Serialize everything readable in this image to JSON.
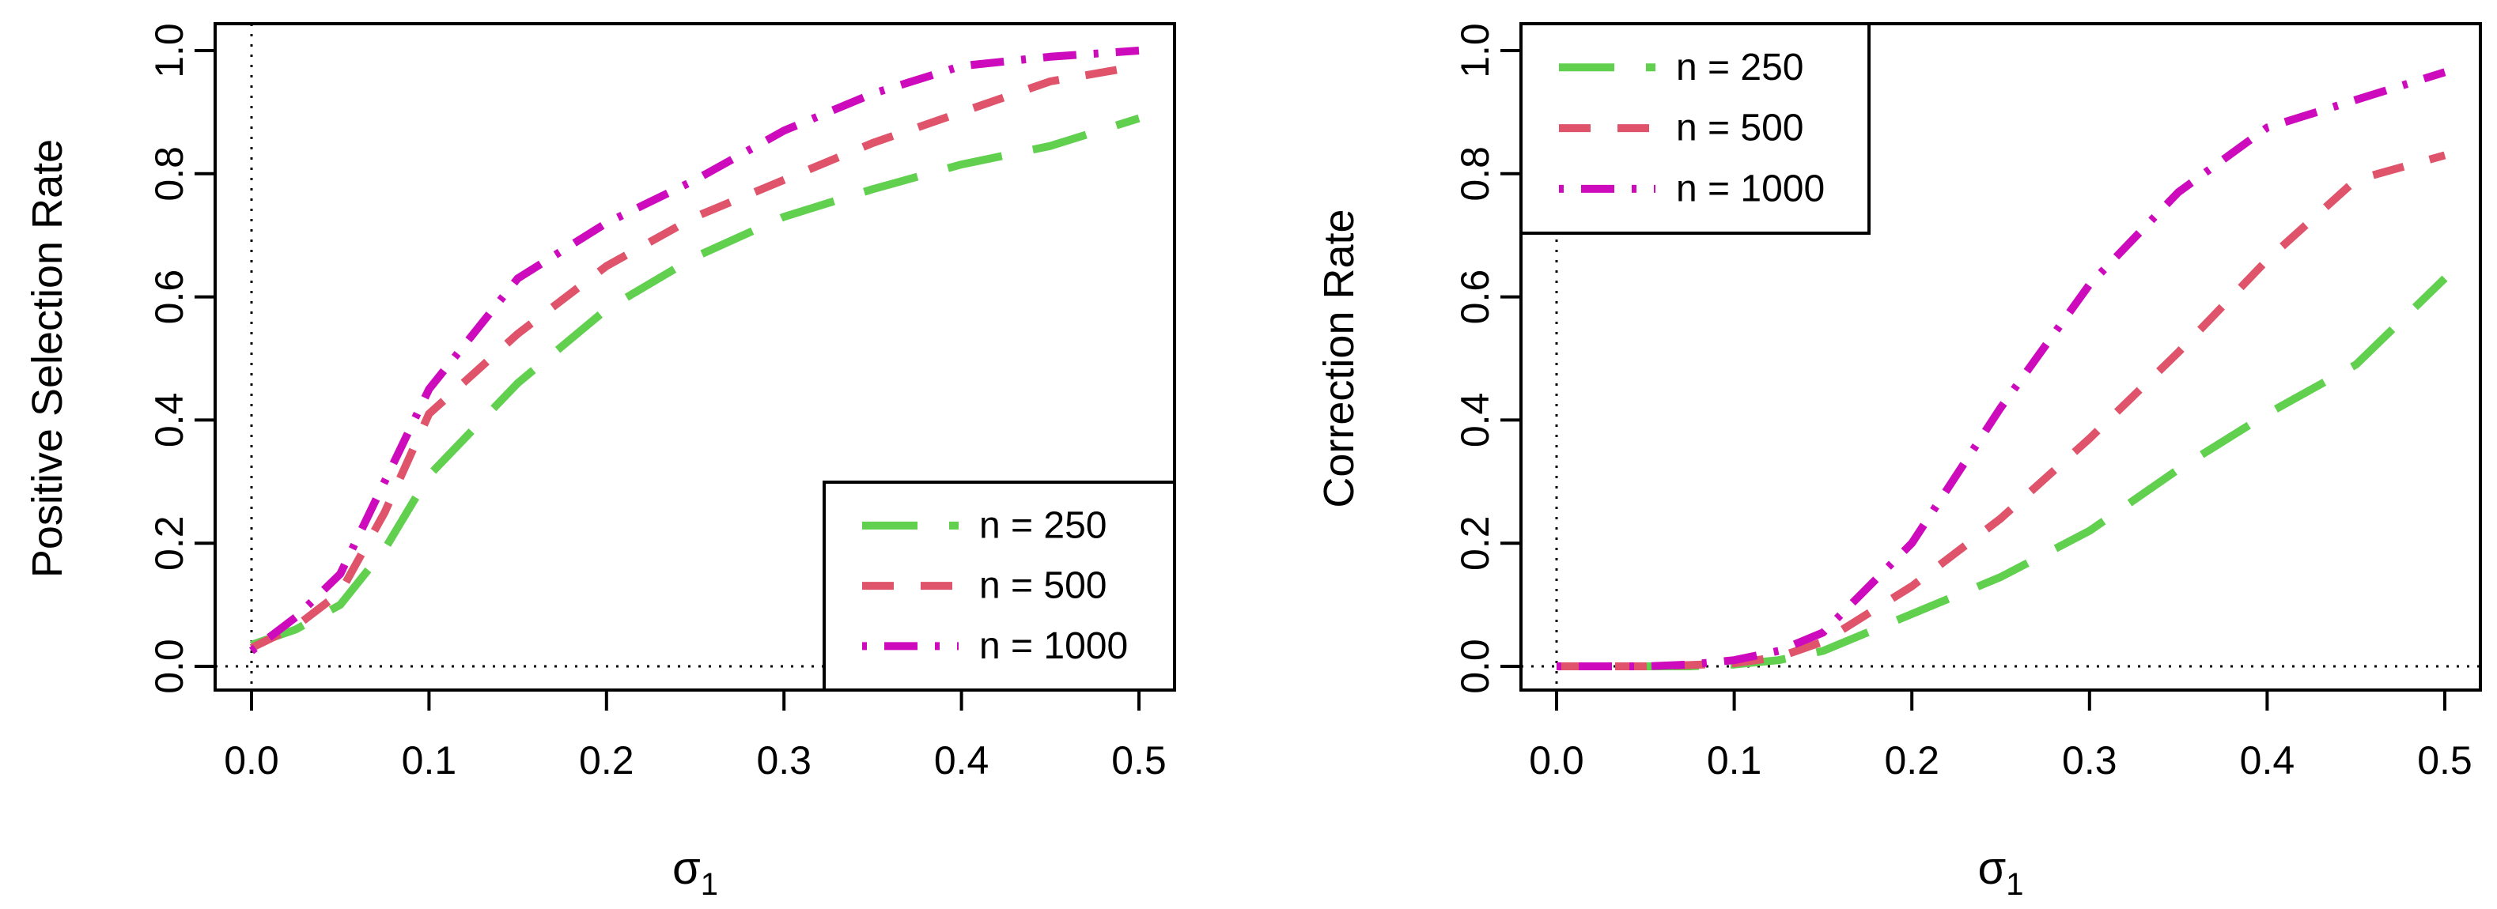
{
  "chart_data": [
    {
      "type": "line",
      "title": "",
      "xlabel": "σ",
      "xlabel_subscript": "1",
      "ylabel": "Positive Selection Rate",
      "xlim": [
        0.0,
        0.5
      ],
      "ylim": [
        0.0,
        1.0
      ],
      "xticks": [
        "0.0",
        "0.1",
        "0.2",
        "0.3",
        "0.4",
        "0.5"
      ],
      "yticks": [
        "0.0",
        "0.2",
        "0.4",
        "0.6",
        "0.8",
        "1.0"
      ],
      "legend_position": "bottom-right",
      "reference_lines": {
        "x": 0.0,
        "y": 0.0
      },
      "series": [
        {
          "name": "n = 250",
          "color": "#61D04F",
          "dash": "long-dash",
          "x": [
            0,
            0.025,
            0.05,
            0.075,
            0.1,
            0.15,
            0.2,
            0.25,
            0.3,
            0.35,
            0.4,
            0.45,
            0.5
          ],
          "values": [
            0.035,
            0.06,
            0.1,
            0.19,
            0.31,
            0.46,
            0.58,
            0.665,
            0.73,
            0.775,
            0.815,
            0.845,
            0.89
          ]
        },
        {
          "name": "n = 500",
          "color": "#DF536B",
          "dash": "short-dash",
          "x": [
            0,
            0.025,
            0.05,
            0.075,
            0.1,
            0.15,
            0.2,
            0.25,
            0.3,
            0.35,
            0.4,
            0.45,
            0.5
          ],
          "values": [
            0.03,
            0.065,
            0.12,
            0.25,
            0.41,
            0.54,
            0.65,
            0.73,
            0.79,
            0.85,
            0.9,
            0.95,
            0.975
          ]
        },
        {
          "name": "n = 1000",
          "color": "#CD0BBC",
          "dash": "dot-dash",
          "x": [
            0,
            0.025,
            0.05,
            0.075,
            0.1,
            0.15,
            0.2,
            0.25,
            0.3,
            0.35,
            0.4,
            0.45,
            0.5
          ],
          "values": [
            0.025,
            0.08,
            0.15,
            0.3,
            0.45,
            0.63,
            0.72,
            0.79,
            0.87,
            0.93,
            0.975,
            0.99,
            1.0
          ]
        }
      ]
    },
    {
      "type": "line",
      "title": "",
      "xlabel": "σ",
      "xlabel_subscript": "1",
      "ylabel": "Correction Rate",
      "xlim": [
        0.0,
        0.5
      ],
      "ylim": [
        0.0,
        1.0
      ],
      "xticks": [
        "0.0",
        "0.1",
        "0.2",
        "0.3",
        "0.4",
        "0.5"
      ],
      "yticks": [
        "0.0",
        "0.2",
        "0.4",
        "0.6",
        "0.8",
        "1.0"
      ],
      "legend_position": "top-left",
      "reference_lines": {
        "x": 0.0,
        "y": 0.0
      },
      "series": [
        {
          "name": "n = 250",
          "color": "#61D04F",
          "dash": "long-dash",
          "x": [
            0,
            0.025,
            0.05,
            0.075,
            0.1,
            0.125,
            0.15,
            0.2,
            0.25,
            0.3,
            0.35,
            0.4,
            0.45,
            0.5
          ],
          "values": [
            0,
            0,
            0,
            0,
            0.003,
            0.01,
            0.025,
            0.085,
            0.145,
            0.22,
            0.32,
            0.41,
            0.49,
            0.63
          ]
        },
        {
          "name": "n = 500",
          "color": "#DF536B",
          "dash": "short-dash",
          "x": [
            0,
            0.025,
            0.05,
            0.075,
            0.1,
            0.125,
            0.15,
            0.2,
            0.25,
            0.3,
            0.35,
            0.4,
            0.45,
            0.5
          ],
          "values": [
            0,
            0,
            0,
            0.002,
            0.005,
            0.015,
            0.04,
            0.13,
            0.24,
            0.37,
            0.51,
            0.66,
            0.79,
            0.83
          ]
        },
        {
          "name": "n = 1000",
          "color": "#CD0BBC",
          "dash": "dot-dash",
          "x": [
            0,
            0.025,
            0.05,
            0.075,
            0.1,
            0.125,
            0.15,
            0.2,
            0.25,
            0.3,
            0.35,
            0.4,
            0.45,
            0.5
          ],
          "values": [
            0,
            0,
            0,
            0.003,
            0.01,
            0.025,
            0.055,
            0.2,
            0.42,
            0.62,
            0.77,
            0.875,
            0.92,
            0.965
          ]
        }
      ]
    }
  ]
}
